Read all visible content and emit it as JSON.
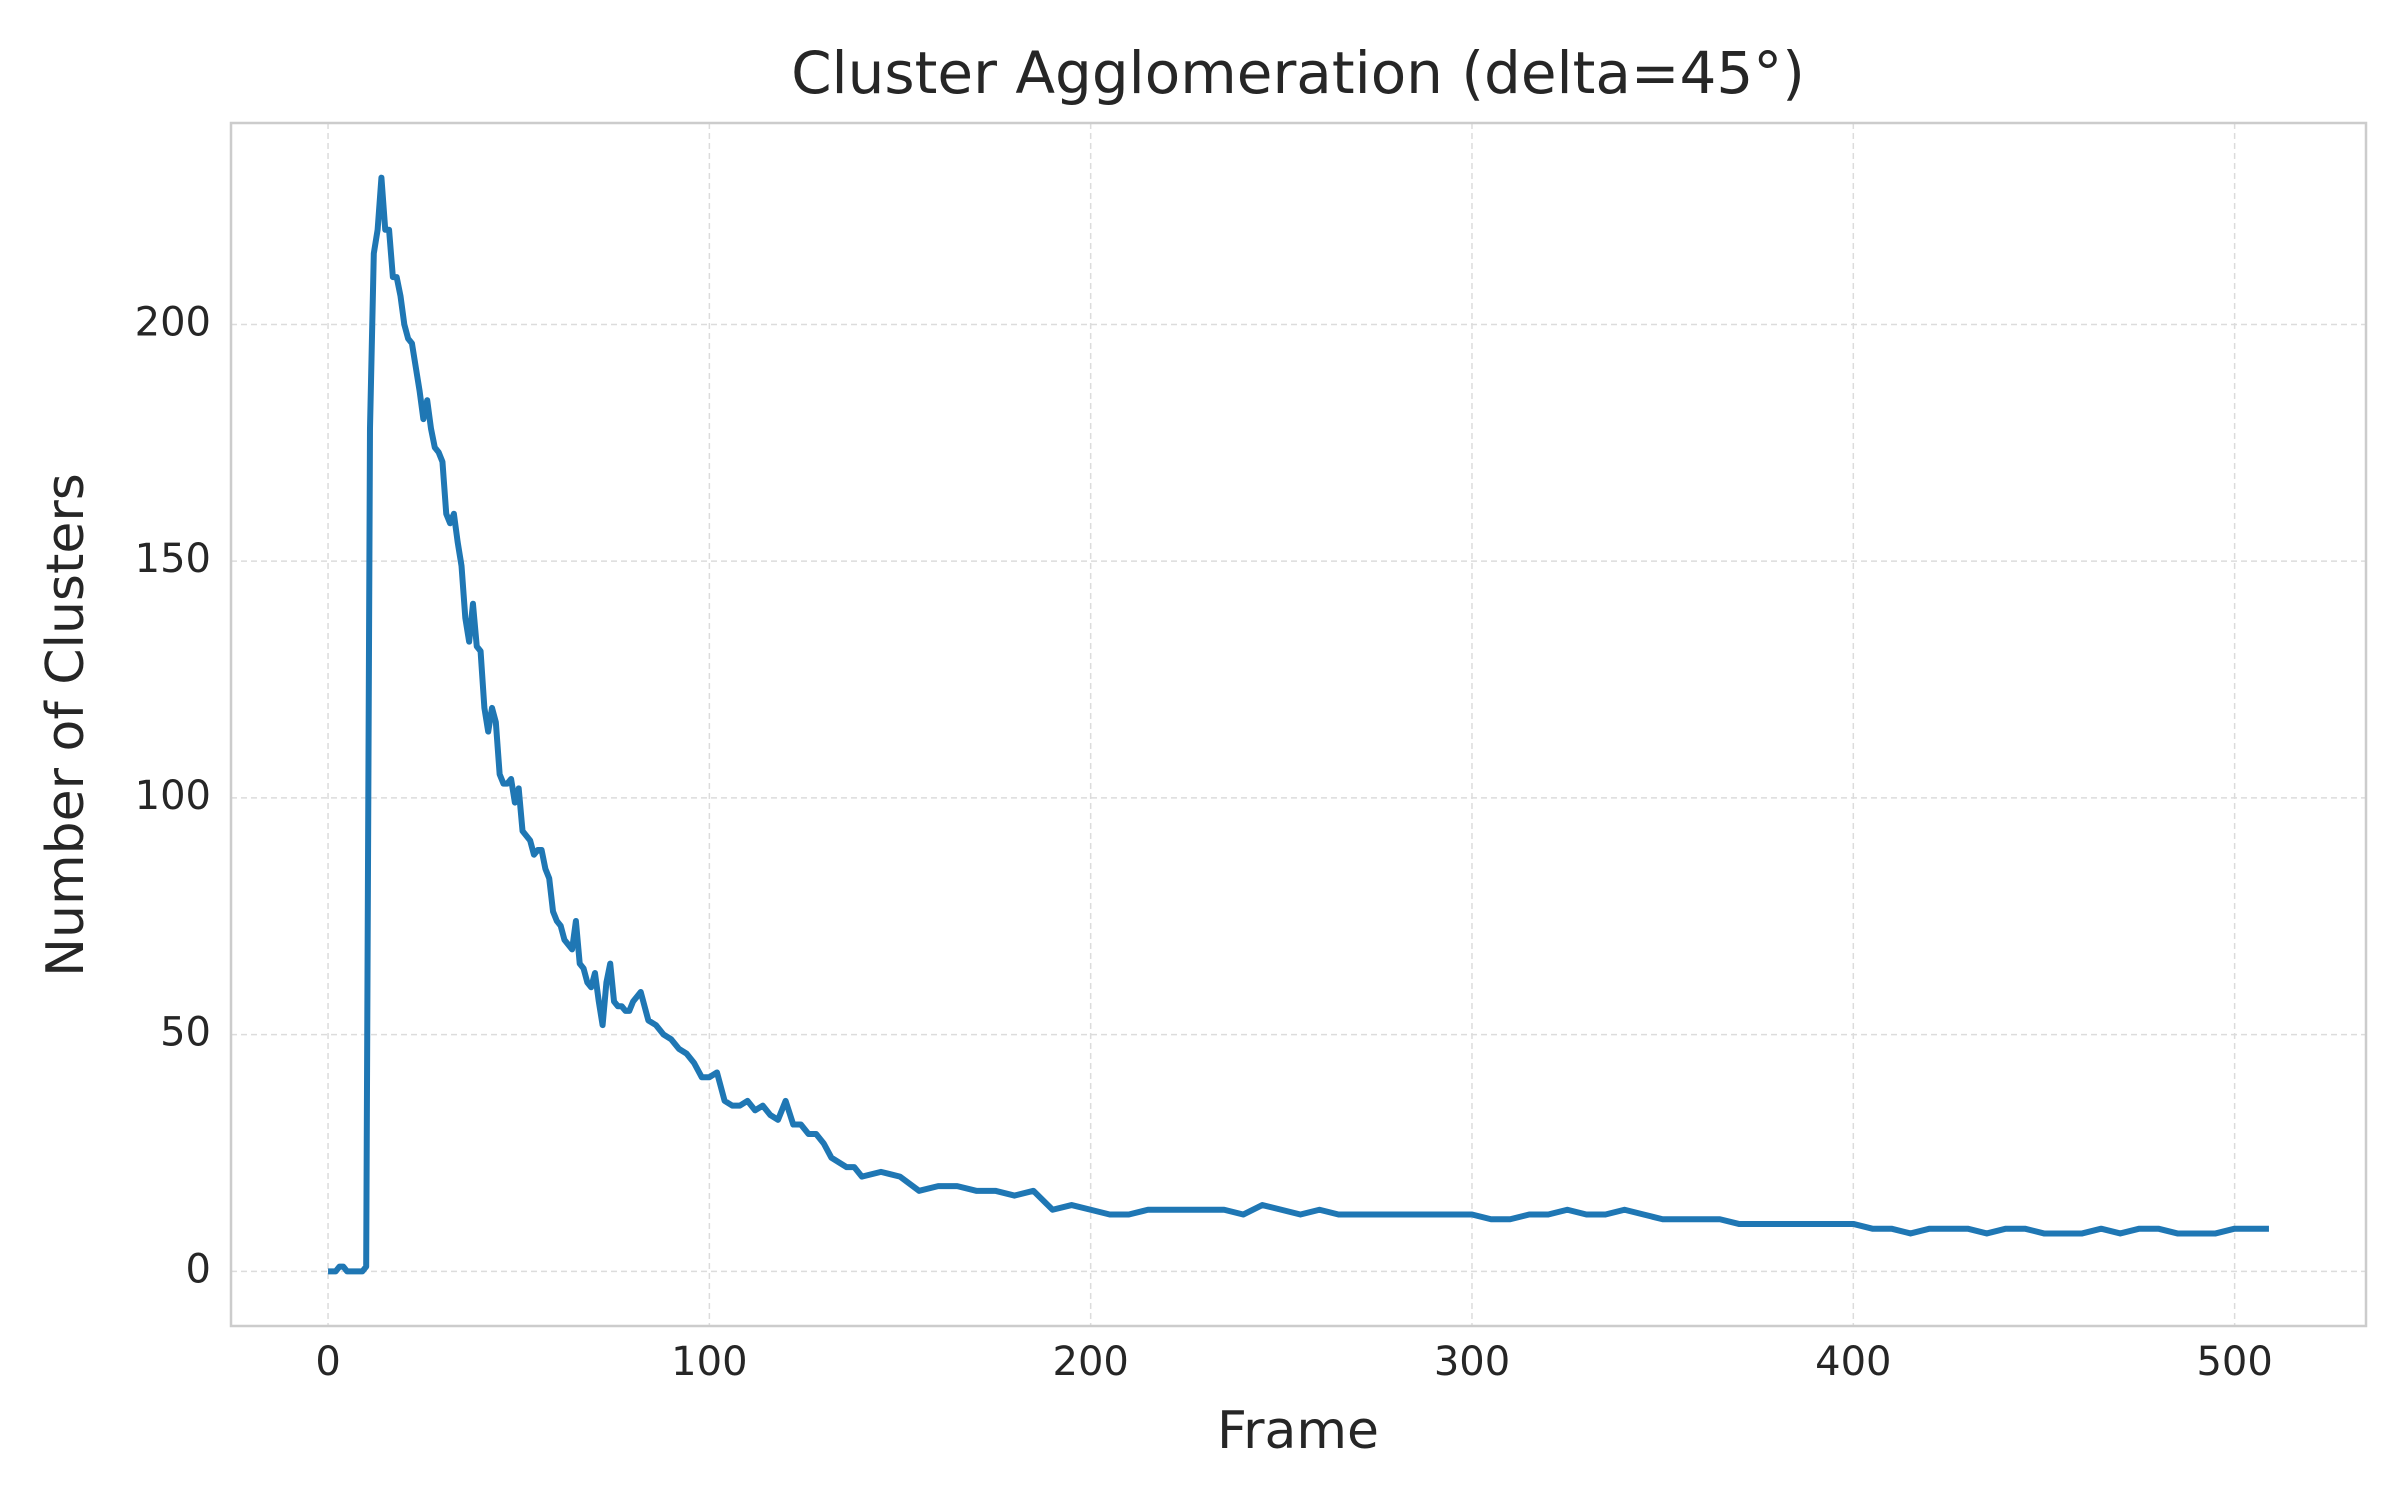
{
  "chart_data": {
    "type": "line",
    "title": "Cluster Agglomeration (delta=45°)",
    "xlabel": "Frame",
    "ylabel": "Number of Clusters",
    "xlim": [
      -25.45,
      534.45
    ],
    "ylim": [
      -11.55,
      242.55
    ],
    "xticks": [
      0,
      100,
      200,
      300,
      400,
      500
    ],
    "yticks": [
      0,
      50,
      100,
      150,
      200
    ],
    "grid": true,
    "x": [
      0,
      1,
      2,
      3,
      4,
      5,
      6,
      7,
      8,
      9,
      10,
      11,
      12,
      13,
      14,
      15,
      16,
      17,
      18,
      19,
      20,
      21,
      22,
      23,
      24,
      25,
      26,
      27,
      28,
      29,
      30,
      31,
      32,
      33,
      34,
      35,
      36,
      37,
      38,
      39,
      40,
      41,
      42,
      43,
      44,
      45,
      46,
      47,
      48,
      49,
      50,
      51,
      52,
      53,
      54,
      55,
      56,
      57,
      58,
      59,
      60,
      61,
      62,
      63,
      64,
      65,
      66,
      67,
      68,
      69,
      70,
      71,
      72,
      73,
      74,
      75,
      76,
      77,
      78,
      79,
      80,
      82,
      84,
      86,
      88,
      90,
      92,
      94,
      96,
      98,
      100,
      102,
      104,
      106,
      108,
      110,
      112,
      114,
      116,
      118,
      120,
      122,
      124,
      126,
      128,
      130,
      132,
      134,
      136,
      138,
      140,
      145,
      150,
      155,
      160,
      165,
      170,
      175,
      180,
      185,
      190,
      195,
      200,
      205,
      210,
      215,
      220,
      225,
      230,
      235,
      240,
      245,
      250,
      255,
      260,
      265,
      270,
      275,
      280,
      285,
      290,
      295,
      300,
      305,
      310,
      315,
      320,
      325,
      330,
      335,
      340,
      345,
      350,
      355,
      360,
      365,
      370,
      375,
      380,
      385,
      390,
      395,
      400,
      405,
      410,
      415,
      420,
      425,
      430,
      435,
      440,
      445,
      450,
      455,
      460,
      465,
      470,
      475,
      480,
      485,
      490,
      495,
      500,
      505,
      509
    ],
    "series": [
      {
        "name": "Clusters",
        "color": "#1f77b4",
        "values": [
          0,
          0,
          0,
          1,
          1,
          0,
          0,
          0,
          0,
          0,
          1,
          178,
          215,
          220,
          231,
          220,
          220,
          210,
          210,
          206,
          200,
          197,
          196,
          191,
          186,
          180,
          184,
          178,
          174,
          173,
          171,
          160,
          158,
          160,
          154,
          149,
          138,
          133,
          141,
          132,
          131,
          119,
          114,
          119,
          116,
          105,
          103,
          103,
          104,
          99,
          102,
          93,
          92,
          91,
          88,
          89,
          89,
          85,
          83,
          76,
          74,
          73,
          70,
          69,
          68,
          74,
          65,
          64,
          61,
          60,
          63,
          57,
          52,
          61,
          65,
          57,
          56,
          56,
          55,
          55,
          57,
          59,
          53,
          52,
          50,
          49,
          47,
          46,
          44,
          41,
          41,
          42,
          36,
          35,
          35,
          36,
          34,
          35,
          33,
          32,
          36,
          31,
          31,
          29,
          29,
          27,
          24,
          23,
          22,
          22,
          20,
          21,
          20,
          17,
          18,
          18,
          17,
          17,
          16,
          17,
          13,
          14,
          13,
          12,
          12,
          13,
          13,
          13,
          13,
          13,
          12,
          14,
          13,
          12,
          13,
          12,
          12,
          12,
          12,
          12,
          12,
          12,
          12,
          11,
          11,
          12,
          12,
          13,
          12,
          12,
          13,
          12,
          11,
          11,
          11,
          11,
          10,
          10,
          10,
          10,
          10,
          10,
          10,
          9,
          9,
          8,
          9,
          9,
          9,
          8,
          9,
          9,
          8,
          8,
          8,
          9,
          8,
          9,
          9,
          8,
          8,
          8,
          9,
          9,
          9
        ]
      }
    ]
  }
}
